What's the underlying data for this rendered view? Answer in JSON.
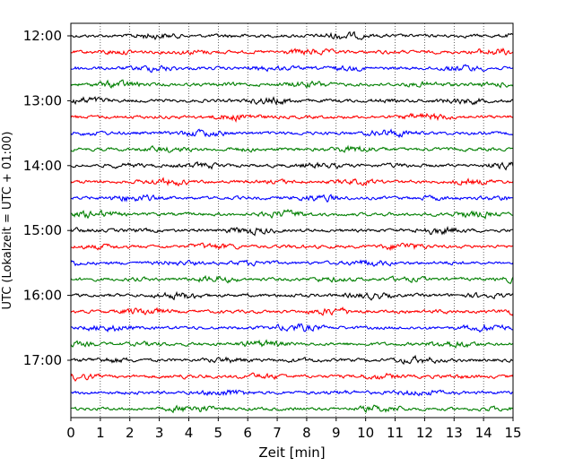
{
  "chart_data": {
    "type": "line",
    "title": "",
    "xlabel": "Zeit  [min]",
    "ylabel": "UTC (Lokalzeit = UTC + 01:00)",
    "xlim": [
      0,
      15
    ],
    "x_ticks": [
      0,
      1,
      2,
      3,
      4,
      5,
      6,
      7,
      8,
      9,
      10,
      11,
      12,
      13,
      14,
      15
    ],
    "x_tick_labels": [
      "0",
      "1",
      "2",
      "3",
      "4",
      "5",
      "6",
      "7",
      "8",
      "9",
      "10",
      "11",
      "12",
      "13",
      "14",
      "15"
    ],
    "y_tick_labels": [
      "12:00",
      "13:00",
      "14:00",
      "15:00",
      "16:00",
      "17:00"
    ],
    "grid": "vertical dotted",
    "legend": "none",
    "trace_minutes": 15,
    "colors": [
      "#000000",
      "#ff0000",
      "#0000ff",
      "#007f00"
    ],
    "traces": [
      {
        "start": "12:00",
        "color": "#000000"
      },
      {
        "start": "12:15",
        "color": "#ff0000"
      },
      {
        "start": "12:30",
        "color": "#0000ff"
      },
      {
        "start": "12:45",
        "color": "#007f00"
      },
      {
        "start": "13:00",
        "color": "#000000"
      },
      {
        "start": "13:15",
        "color": "#ff0000"
      },
      {
        "start": "13:30",
        "color": "#0000ff"
      },
      {
        "start": "13:45",
        "color": "#007f00"
      },
      {
        "start": "14:00",
        "color": "#000000"
      },
      {
        "start": "14:15",
        "color": "#ff0000"
      },
      {
        "start": "14:30",
        "color": "#0000ff"
      },
      {
        "start": "14:45",
        "color": "#007f00"
      },
      {
        "start": "15:00",
        "color": "#000000"
      },
      {
        "start": "15:15",
        "color": "#ff0000"
      },
      {
        "start": "15:30",
        "color": "#0000ff"
      },
      {
        "start": "15:45",
        "color": "#007f00"
      },
      {
        "start": "16:00",
        "color": "#000000"
      },
      {
        "start": "16:15",
        "color": "#ff0000"
      },
      {
        "start": "16:30",
        "color": "#0000ff"
      },
      {
        "start": "16:45",
        "color": "#007f00"
      },
      {
        "start": "17:00",
        "color": "#000000"
      },
      {
        "start": "17:15",
        "color": "#ff0000"
      },
      {
        "start": "17:30",
        "color": "#0000ff"
      },
      {
        "start": "17:45",
        "color": "#007f00"
      }
    ]
  }
}
